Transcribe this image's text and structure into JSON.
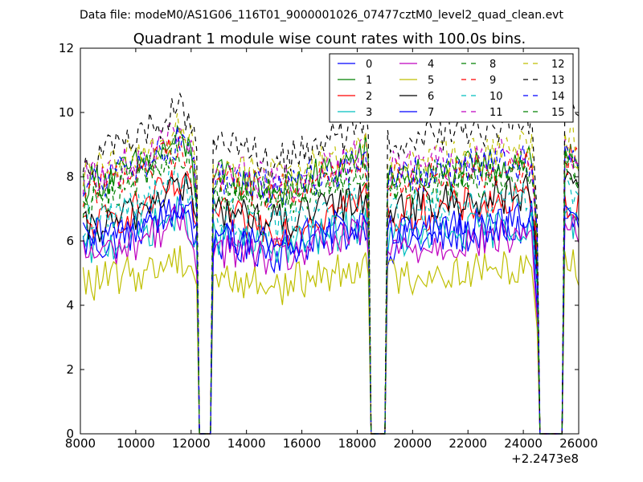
{
  "figure": {
    "suptitle": "Data file: modeM0/AS1G06_116T01_9000001026_07477cztM0_level2_quad_clean.evt",
    "title": "Quadrant 1 module wise count rates with 100.0s bins.",
    "x_offset_label": "+2.2473e8"
  },
  "chart_data": {
    "type": "line",
    "title": "Quadrant 1 module wise count rates with 100.0s bins.",
    "xlabel": "",
    "ylabel": "",
    "xlim": [
      8000,
      26000
    ],
    "ylim": [
      0,
      12
    ],
    "x_offset": 224730000,
    "x_ticks": [
      8000,
      10000,
      12000,
      14000,
      16000,
      18000,
      20000,
      22000,
      24000,
      26000
    ],
    "y_ticks": [
      0,
      2,
      4,
      6,
      8,
      10,
      12
    ],
    "grid": false,
    "legend": {
      "placement": "top-right",
      "columns": 4
    },
    "gaps": [
      [
        12300,
        12700
      ],
      [
        18500,
        19000
      ],
      [
        24600,
        25400
      ]
    ],
    "x": [
      8100,
      8500,
      9000,
      9500,
      10000,
      10500,
      11000,
      11500,
      12000,
      12200,
      12250,
      12300,
      12700,
      12750,
      12800,
      13500,
      14000,
      14500,
      15000,
      15500,
      16000,
      16500,
      17000,
      17500,
      18000,
      18300,
      18450,
      18500,
      19000,
      19050,
      19100,
      19500,
      20000,
      20500,
      21000,
      21500,
      22000,
      22500,
      23000,
      23500,
      24000,
      24300,
      24500,
      24600,
      25400,
      25450,
      25500,
      25700,
      26000
    ],
    "series": [
      {
        "name": "0",
        "color": "#0000ff",
        "dash": "solid",
        "values": [
          5.9,
          6.0,
          5.8,
          6.1,
          6.3,
          6.6,
          6.8,
          7.0,
          6.7,
          5.8,
          3.0,
          0,
          0,
          4.5,
          6.0,
          5.9,
          5.7,
          5.8,
          5.6,
          5.7,
          5.9,
          6.0,
          6.1,
          6.2,
          6.4,
          6.6,
          5.5,
          0,
          0,
          4.0,
          5.8,
          5.9,
          6.0,
          6.0,
          6.1,
          6.1,
          6.2,
          6.2,
          6.3,
          6.3,
          6.4,
          6.4,
          4.0,
          0,
          0,
          4.0,
          6.5,
          6.6,
          6.4
        ]
      },
      {
        "name": "1",
        "color": "#008000",
        "dash": "solid",
        "values": [
          7.8,
          7.9,
          8.0,
          8.1,
          8.3,
          8.5,
          8.8,
          9.1,
          8.8,
          7.5,
          4.0,
          0,
          0,
          5.5,
          8.0,
          7.9,
          7.8,
          7.7,
          7.6,
          7.6,
          7.8,
          8.0,
          8.2,
          8.4,
          8.6,
          8.8,
          7.5,
          0,
          0,
          5.0,
          8.0,
          8.1,
          8.1,
          8.0,
          8.0,
          8.1,
          8.2,
          8.3,
          8.4,
          8.5,
          8.6,
          8.7,
          6.0,
          0,
          0,
          5.5,
          8.7,
          8.8,
          8.5
        ]
      },
      {
        "name": "2",
        "color": "#ff0000",
        "dash": "solid",
        "values": [
          6.4,
          6.5,
          6.6,
          6.8,
          7.0,
          7.2,
          7.5,
          7.7,
          7.4,
          6.5,
          3.5,
          0,
          0,
          5.0,
          6.8,
          6.7,
          6.6,
          6.5,
          6.4,
          6.4,
          6.6,
          6.8,
          6.9,
          7.0,
          7.2,
          7.4,
          6.2,
          0,
          0,
          4.5,
          6.8,
          6.8,
          6.9,
          6.9,
          7.0,
          7.0,
          7.1,
          7.1,
          7.2,
          7.2,
          7.3,
          7.3,
          5.0,
          0,
          0,
          4.5,
          7.2,
          7.3,
          7.0
        ]
      },
      {
        "name": "3",
        "color": "#00bfbf",
        "dash": "solid",
        "values": [
          5.7,
          5.8,
          5.9,
          6.0,
          6.2,
          6.4,
          6.6,
          6.8,
          6.5,
          5.7,
          3.0,
          0,
          0,
          4.5,
          6.1,
          6.0,
          5.9,
          5.8,
          5.8,
          5.8,
          6.0,
          6.1,
          6.2,
          6.3,
          6.5,
          6.7,
          5.5,
          0,
          0,
          4.0,
          6.0,
          6.0,
          6.1,
          6.1,
          6.2,
          6.2,
          6.3,
          6.3,
          6.4,
          6.4,
          6.5,
          6.5,
          4.2,
          0,
          0,
          4.0,
          6.6,
          6.7,
          6.4
        ]
      },
      {
        "name": "4",
        "color": "#bf00bf",
        "dash": "solid",
        "values": [
          5.6,
          5.6,
          5.7,
          5.8,
          6.0,
          6.2,
          6.4,
          6.6,
          6.3,
          5.5,
          3.0,
          0,
          0,
          4.3,
          5.8,
          5.7,
          5.6,
          5.5,
          5.5,
          5.5,
          5.7,
          5.8,
          5.9,
          6.0,
          6.2,
          6.4,
          5.3,
          0,
          0,
          3.8,
          5.7,
          5.7,
          5.8,
          5.8,
          5.9,
          5.9,
          6.0,
          6.0,
          6.1,
          6.1,
          6.2,
          6.2,
          4.0,
          0,
          0,
          3.8,
          6.3,
          6.4,
          6.1
        ]
      },
      {
        "name": "5",
        "color": "#bfbf00",
        "dash": "solid",
        "values": [
          4.7,
          4.7,
          4.8,
          4.9,
          5.0,
          5.1,
          5.3,
          5.5,
          5.3,
          4.8,
          2.5,
          0,
          0,
          3.8,
          4.9,
          4.8,
          4.7,
          4.7,
          4.6,
          4.6,
          4.8,
          4.9,
          5.0,
          5.1,
          5.3,
          5.6,
          4.5,
          0,
          0,
          3.3,
          4.9,
          4.9,
          4.9,
          5.0,
          5.0,
          5.0,
          5.1,
          5.1,
          5.1,
          5.2,
          5.3,
          5.3,
          3.5,
          0,
          0,
          3.3,
          5.4,
          5.5,
          5.1
        ]
      },
      {
        "name": "6",
        "color": "#000000",
        "dash": "solid",
        "values": [
          6.3,
          6.4,
          6.5,
          6.7,
          6.9,
          7.2,
          7.5,
          7.8,
          7.5,
          6.5,
          3.5,
          0,
          0,
          5.0,
          7.0,
          6.9,
          6.8,
          6.7,
          6.6,
          6.6,
          6.8,
          6.9,
          7.0,
          7.1,
          7.3,
          7.5,
          6.3,
          0,
          0,
          4.5,
          7.0,
          7.1,
          7.1,
          7.1,
          7.2,
          7.2,
          7.3,
          7.3,
          7.4,
          7.4,
          7.5,
          7.5,
          5.0,
          0,
          0,
          4.5,
          7.6,
          7.7,
          7.3
        ]
      },
      {
        "name": "7",
        "color": "#0000ff",
        "dash": "solid",
        "values": [
          6.0,
          6.1,
          6.2,
          6.3,
          6.5,
          6.7,
          6.9,
          7.1,
          6.8,
          6.0,
          3.2,
          0,
          0,
          4.6,
          6.3,
          6.2,
          6.1,
          6.0,
          5.9,
          5.9,
          6.1,
          6.2,
          6.3,
          6.4,
          6.6,
          6.8,
          5.6,
          0,
          0,
          4.1,
          6.2,
          6.2,
          6.3,
          6.3,
          6.4,
          6.4,
          6.5,
          6.5,
          6.6,
          6.6,
          6.7,
          6.7,
          4.4,
          0,
          0,
          4.1,
          6.8,
          6.9,
          6.6
        ]
      },
      {
        "name": "8",
        "color": "#008000",
        "dash": "dashed",
        "values": [
          7.3,
          7.4,
          7.5,
          7.7,
          7.9,
          8.1,
          8.4,
          8.6,
          8.3,
          7.2,
          3.8,
          0,
          0,
          5.5,
          7.6,
          7.5,
          7.4,
          7.3,
          7.2,
          7.2,
          7.4,
          7.6,
          7.7,
          7.8,
          8.0,
          8.2,
          6.9,
          0,
          0,
          5.0,
          7.6,
          7.7,
          7.7,
          7.7,
          7.8,
          7.8,
          7.9,
          7.9,
          8.0,
          8.0,
          8.1,
          8.1,
          5.5,
          0,
          0,
          5.0,
          8.2,
          8.3,
          7.9
        ]
      },
      {
        "name": "9",
        "color": "#ff0000",
        "dash": "dashed",
        "values": [
          7.6,
          7.7,
          7.8,
          8.0,
          8.2,
          8.4,
          8.7,
          8.9,
          8.6,
          7.5,
          4.0,
          0,
          0,
          5.6,
          7.9,
          7.8,
          7.7,
          7.6,
          7.5,
          7.5,
          7.7,
          7.9,
          8.0,
          8.1,
          8.3,
          8.5,
          7.1,
          0,
          0,
          5.1,
          7.9,
          8.0,
          8.0,
          8.0,
          8.1,
          8.1,
          8.2,
          8.2,
          8.3,
          8.3,
          8.4,
          8.4,
          5.7,
          0,
          0,
          5.1,
          8.5,
          8.6,
          8.2
        ]
      },
      {
        "name": "10",
        "color": "#00bfbf",
        "dash": "dashed",
        "values": [
          6.6,
          6.7,
          6.8,
          7.0,
          7.2,
          7.4,
          7.6,
          7.8,
          7.5,
          6.6,
          3.5,
          0,
          0,
          5.0,
          6.9,
          6.8,
          6.7,
          6.6,
          6.5,
          6.5,
          6.7,
          6.9,
          7.0,
          7.1,
          7.3,
          7.5,
          6.3,
          0,
          0,
          4.5,
          6.9,
          7.0,
          7.0,
          7.0,
          7.1,
          7.1,
          7.2,
          7.2,
          7.3,
          7.3,
          7.4,
          7.4,
          5.0,
          0,
          0,
          4.5,
          7.5,
          7.6,
          7.2
        ]
      },
      {
        "name": "11",
        "color": "#bf00bf",
        "dash": "dashed",
        "values": [
          7.9,
          8.0,
          8.1,
          8.3,
          8.5,
          8.7,
          9.0,
          9.2,
          8.9,
          7.8,
          4.1,
          0,
          0,
          5.8,
          8.2,
          8.1,
          8.0,
          7.9,
          7.8,
          7.8,
          8.0,
          8.2,
          8.3,
          8.4,
          8.6,
          8.8,
          7.4,
          0,
          0,
          5.3,
          8.2,
          8.3,
          8.3,
          8.3,
          8.4,
          8.4,
          8.5,
          8.5,
          8.6,
          8.6,
          8.7,
          8.7,
          5.9,
          0,
          0,
          5.3,
          8.8,
          8.9,
          8.5
        ]
      },
      {
        "name": "12",
        "color": "#bfbf00",
        "dash": "dashed",
        "values": [
          8.1,
          8.2,
          8.3,
          8.5,
          8.7,
          8.9,
          9.2,
          9.5,
          9.1,
          8.0,
          4.2,
          0,
          0,
          5.9,
          8.4,
          8.3,
          8.2,
          8.1,
          8.0,
          8.0,
          8.2,
          8.4,
          8.5,
          8.6,
          8.8,
          9.0,
          7.6,
          0,
          0,
          5.4,
          8.4,
          8.5,
          8.5,
          8.5,
          8.6,
          8.6,
          8.7,
          8.7,
          8.8,
          8.8,
          8.9,
          8.9,
          6.0,
          0,
          0,
          5.4,
          9.0,
          9.1,
          8.7
        ]
      },
      {
        "name": "13",
        "color": "#000000",
        "dash": "dashed",
        "values": [
          8.5,
          8.6,
          8.8,
          9.0,
          9.2,
          9.5,
          9.8,
          10.2,
          9.8,
          8.6,
          4.5,
          0,
          0,
          6.3,
          8.9,
          8.8,
          8.7,
          8.6,
          8.5,
          8.5,
          8.7,
          8.9,
          9.1,
          9.3,
          9.6,
          10.0,
          8.4,
          0,
          0,
          6.0,
          9.1,
          9.2,
          9.2,
          9.2,
          9.3,
          9.3,
          9.4,
          9.4,
          9.5,
          9.5,
          9.7,
          9.8,
          6.5,
          0,
          0,
          6.0,
          9.9,
          10.0,
          9.5
        ]
      },
      {
        "name": "14",
        "color": "#0000ff",
        "dash": "dashed",
        "values": [
          7.7,
          7.8,
          7.9,
          8.1,
          8.3,
          8.5,
          8.8,
          9.0,
          8.7,
          7.6,
          4.0,
          0,
          0,
          5.7,
          8.0,
          7.9,
          7.8,
          7.7,
          7.6,
          7.6,
          7.8,
          8.0,
          8.1,
          8.2,
          8.4,
          8.6,
          7.2,
          0,
          0,
          5.2,
          8.0,
          8.1,
          8.1,
          8.1,
          8.2,
          8.2,
          8.3,
          8.3,
          8.4,
          8.4,
          8.5,
          8.5,
          5.8,
          0,
          0,
          5.2,
          8.6,
          8.7,
          8.3
        ]
      },
      {
        "name": "15",
        "color": "#008000",
        "dash": "dashed",
        "values": [
          7.5,
          7.6,
          7.7,
          7.9,
          8.1,
          8.3,
          8.6,
          8.8,
          8.5,
          7.4,
          3.9,
          0,
          0,
          5.6,
          7.8,
          7.7,
          7.6,
          7.5,
          7.4,
          7.4,
          7.6,
          7.8,
          7.9,
          8.0,
          8.2,
          8.4,
          7.0,
          0,
          0,
          5.1,
          7.8,
          7.9,
          7.9,
          7.9,
          8.0,
          8.0,
          8.1,
          8.1,
          8.2,
          8.2,
          8.3,
          8.3,
          5.6,
          0,
          0,
          5.1,
          8.4,
          8.5,
          8.1
        ]
      }
    ]
  }
}
